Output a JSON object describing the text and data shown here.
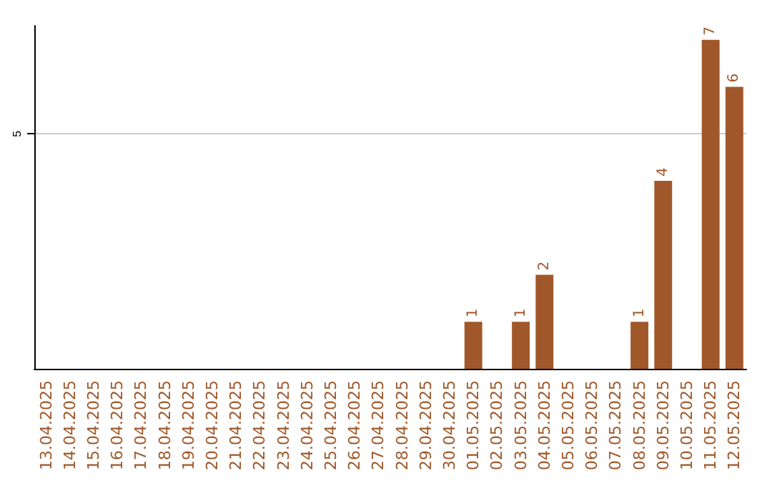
{
  "chart_data": {
    "type": "bar",
    "categories": [
      "13.04.2025",
      "14.04.2025",
      "15.04.2025",
      "16.04.2025",
      "17.04.2025",
      "18.04.2025",
      "19.04.2025",
      "20.04.2025",
      "21.04.2025",
      "22.04.2025",
      "23.04.2025",
      "24.04.2025",
      "25.04.2025",
      "26.04.2025",
      "27.04.2025",
      "28.04.2025",
      "29.04.2025",
      "30.04.2025",
      "01.05.2025",
      "02.05.2025",
      "03.05.2025",
      "04.05.2025",
      "05.05.2025",
      "06.05.2025",
      "07.05.2025",
      "08.05.2025",
      "09.05.2025",
      "10.05.2025",
      "11.05.2025",
      "12.05.2025"
    ],
    "values": [
      null,
      null,
      null,
      null,
      null,
      null,
      null,
      null,
      null,
      null,
      null,
      null,
      null,
      null,
      null,
      null,
      null,
      null,
      1,
      null,
      1,
      2,
      null,
      null,
      null,
      1,
      4,
      null,
      7,
      6
    ],
    "color": "#a0582a",
    "ylim": [
      0,
      7.3
    ],
    "yticks": [
      5
    ],
    "grid": "y",
    "data_labels": true
  }
}
